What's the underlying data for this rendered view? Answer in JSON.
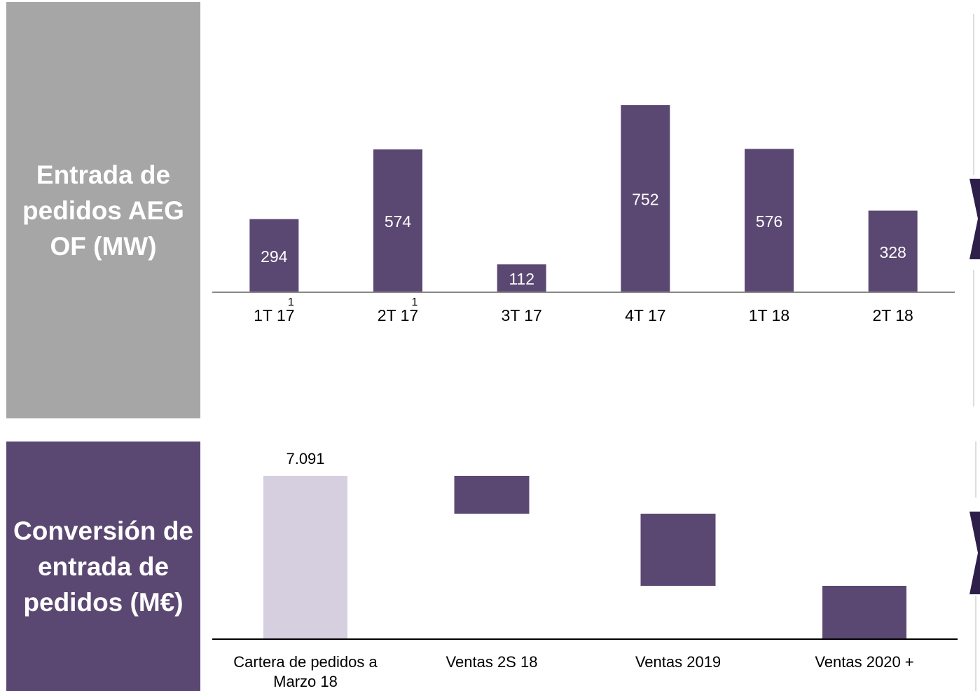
{
  "panels": [
    {
      "heading": "Entrada de pedidos AEG OF (MW)",
      "chart_data": {
        "type": "bar",
        "categories": [
          "1T 17",
          "2T 17",
          "3T 17",
          "4T 17",
          "1T 18",
          "2T 18"
        ],
        "category_notes": [
          "1",
          "1",
          null,
          null,
          null,
          null
        ],
        "values": [
          294,
          574,
          112,
          752,
          576,
          328
        ],
        "color": "#5b4872",
        "ylim": [
          0,
          800
        ]
      }
    },
    {
      "heading": "Conversión de entrada de pedidos (M€)",
      "chart_data": {
        "type": "waterfall",
        "categories": [
          "Cartera de pedidos a Marzo 18",
          "Ventas 2S 18",
          "Ventas 2019",
          "Ventas 2020 +"
        ],
        "values": [
          7091,
          -1643,
          -3134,
          -2314
        ],
        "value_labels": [
          "7.091",
          null,
          null,
          null
        ],
        "colors": [
          "#d5cfe0",
          "#5b4872",
          "#5b4872",
          "#5b4872"
        ],
        "ylim": [
          0,
          8000
        ]
      }
    }
  ]
}
